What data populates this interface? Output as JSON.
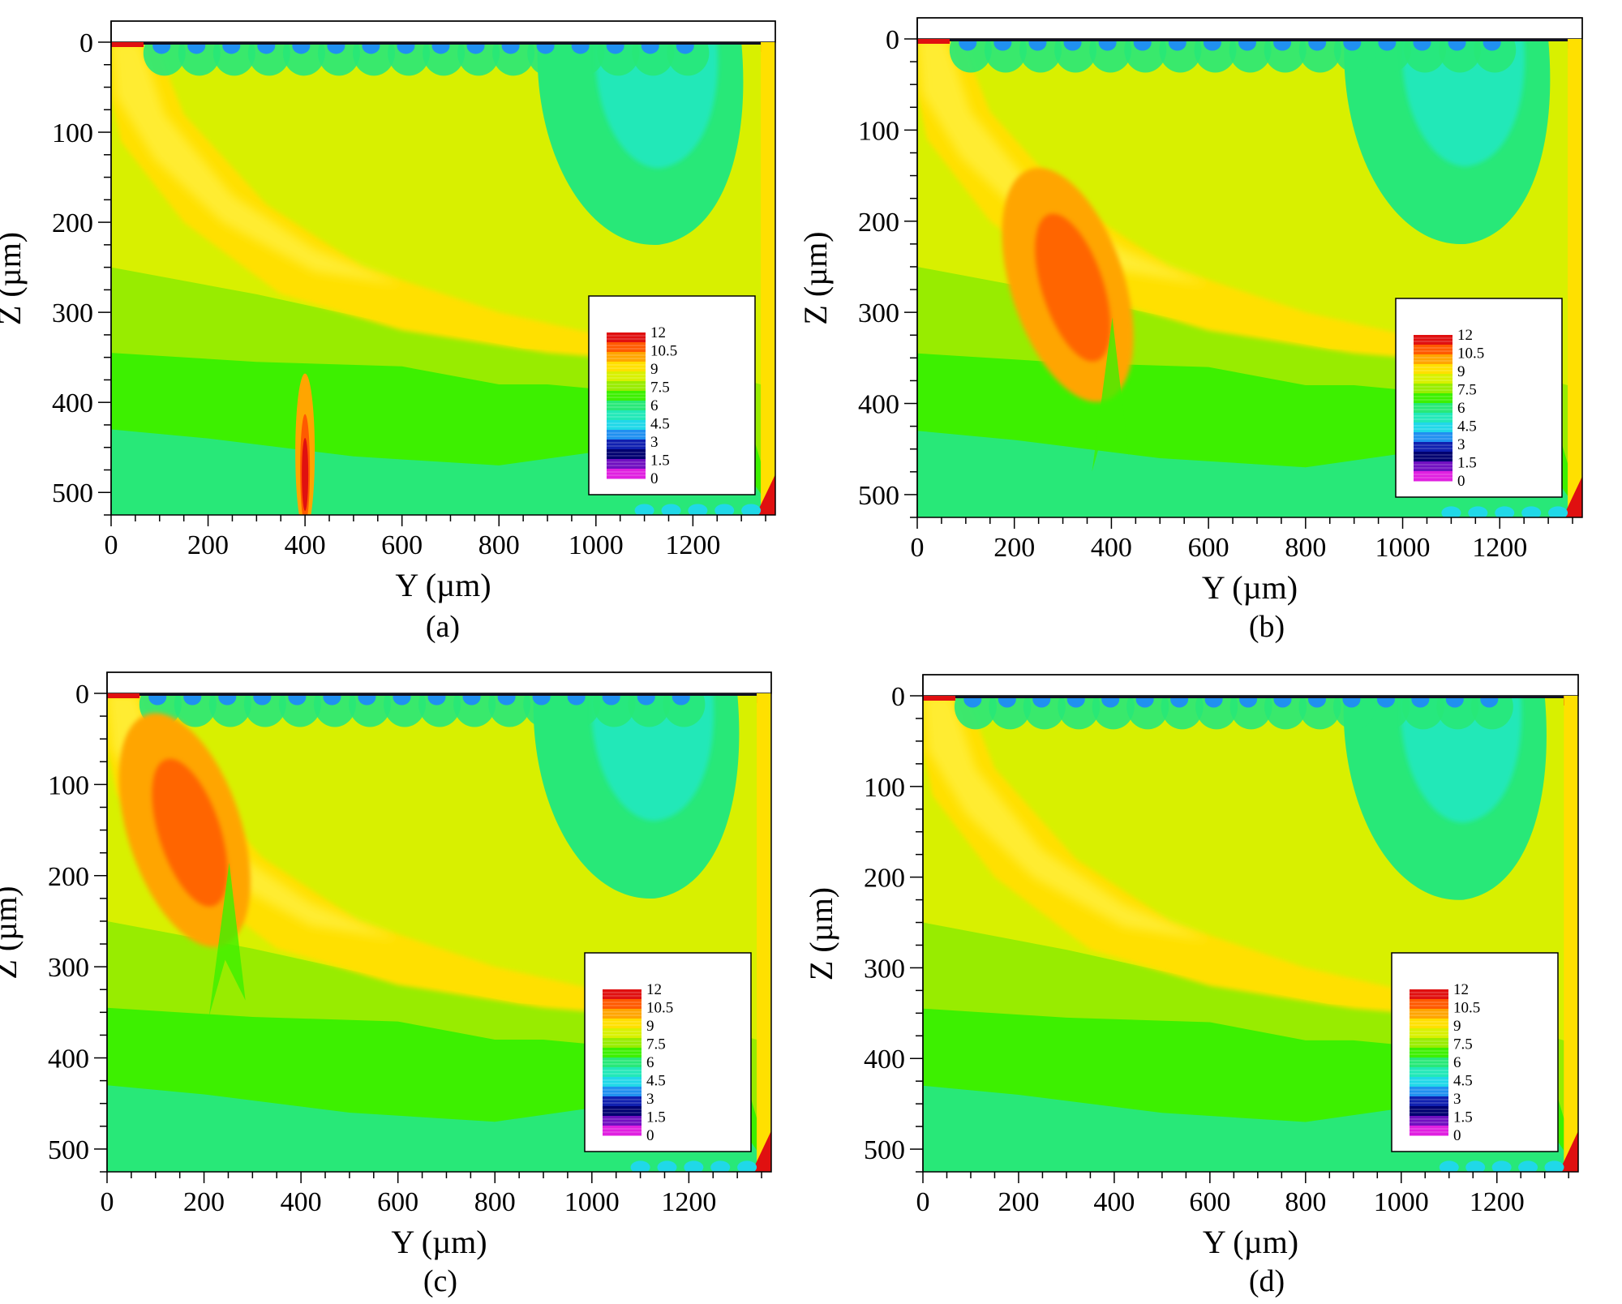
{
  "chart_data": [
    {
      "type": "heatmap",
      "panel_label": "(a)",
      "title": "",
      "xlabel": "Y (µm)",
      "ylabel": "Z (µm)",
      "xlim": [
        0,
        1370
      ],
      "ylim": [
        525,
        0
      ],
      "xticks": [
        0,
        200,
        400,
        600,
        800,
        1000,
        1200
      ],
      "yticks": [
        0,
        100,
        200,
        300,
        400,
        500
      ],
      "legend": {
        "placement": "bottom-right",
        "levels": [
          "12",
          "10.5",
          "9",
          "7.5",
          "6",
          "4.5",
          "3",
          "1.5",
          "0"
        ]
      },
      "features": [
        {
          "name": "vertical-streak",
          "y_center": 400,
          "z_top": 350,
          "z_bottom": 525,
          "peak_value": 12
        }
      ]
    },
    {
      "type": "heatmap",
      "panel_label": "(b)",
      "title": "",
      "xlabel": "Y (µm)",
      "ylabel": "Z (µm)",
      "xlim": [
        0,
        1370
      ],
      "ylim": [
        525,
        0
      ],
      "xticks": [
        0,
        200,
        400,
        600,
        800,
        1000,
        1200
      ],
      "yticks": [
        0,
        100,
        200,
        300,
        400,
        500
      ],
      "legend": {
        "placement": "bottom-right",
        "levels": [
          "12",
          "10.5",
          "9",
          "7.5",
          "6",
          "4.5",
          "3",
          "1.5",
          "0"
        ]
      },
      "features": [
        {
          "name": "inclined-hotspot",
          "y_center": 310,
          "z_center": 270,
          "peak_value": 10.5
        }
      ]
    },
    {
      "type": "heatmap",
      "panel_label": "(c)",
      "title": "",
      "xlabel": "Y (µm)",
      "ylabel": "Z (µm)",
      "xlim": [
        0,
        1370
      ],
      "ylim": [
        525,
        0
      ],
      "xticks": [
        0,
        200,
        400,
        600,
        800,
        1000,
        1200
      ],
      "yticks": [
        0,
        100,
        200,
        300,
        400,
        500
      ],
      "legend": {
        "placement": "bottom-right",
        "levels": [
          "12",
          "10.5",
          "9",
          "7.5",
          "6",
          "4.5",
          "3",
          "1.5",
          "0"
        ]
      },
      "features": [
        {
          "name": "inclined-hotspot",
          "y_center": 160,
          "z_center": 150,
          "peak_value": 10.5
        }
      ]
    },
    {
      "type": "heatmap",
      "panel_label": "(d)",
      "title": "",
      "xlabel": "Y (µm)",
      "ylabel": "Z (µm)",
      "xlim": [
        0,
        1370
      ],
      "ylim": [
        525,
        0
      ],
      "xticks": [
        0,
        200,
        400,
        600,
        800,
        1000,
        1200
      ],
      "yticks": [
        0,
        100,
        200,
        300,
        400,
        500
      ],
      "legend": {
        "placement": "bottom-right",
        "levels": [
          "12",
          "10.5",
          "9",
          "7.5",
          "6",
          "4.5",
          "3",
          "1.5",
          "0"
        ]
      },
      "features": []
    }
  ],
  "colormap": [
    "#e01010",
    "#ff5a00",
    "#ffa500",
    "#ffe000",
    "#d8f000",
    "#98ec00",
    "#3df000",
    "#28e878",
    "#22e8b8",
    "#20d8e8",
    "#2090f0",
    "#1020b0",
    "#000070",
    "#7010c0",
    "#e020e0"
  ]
}
